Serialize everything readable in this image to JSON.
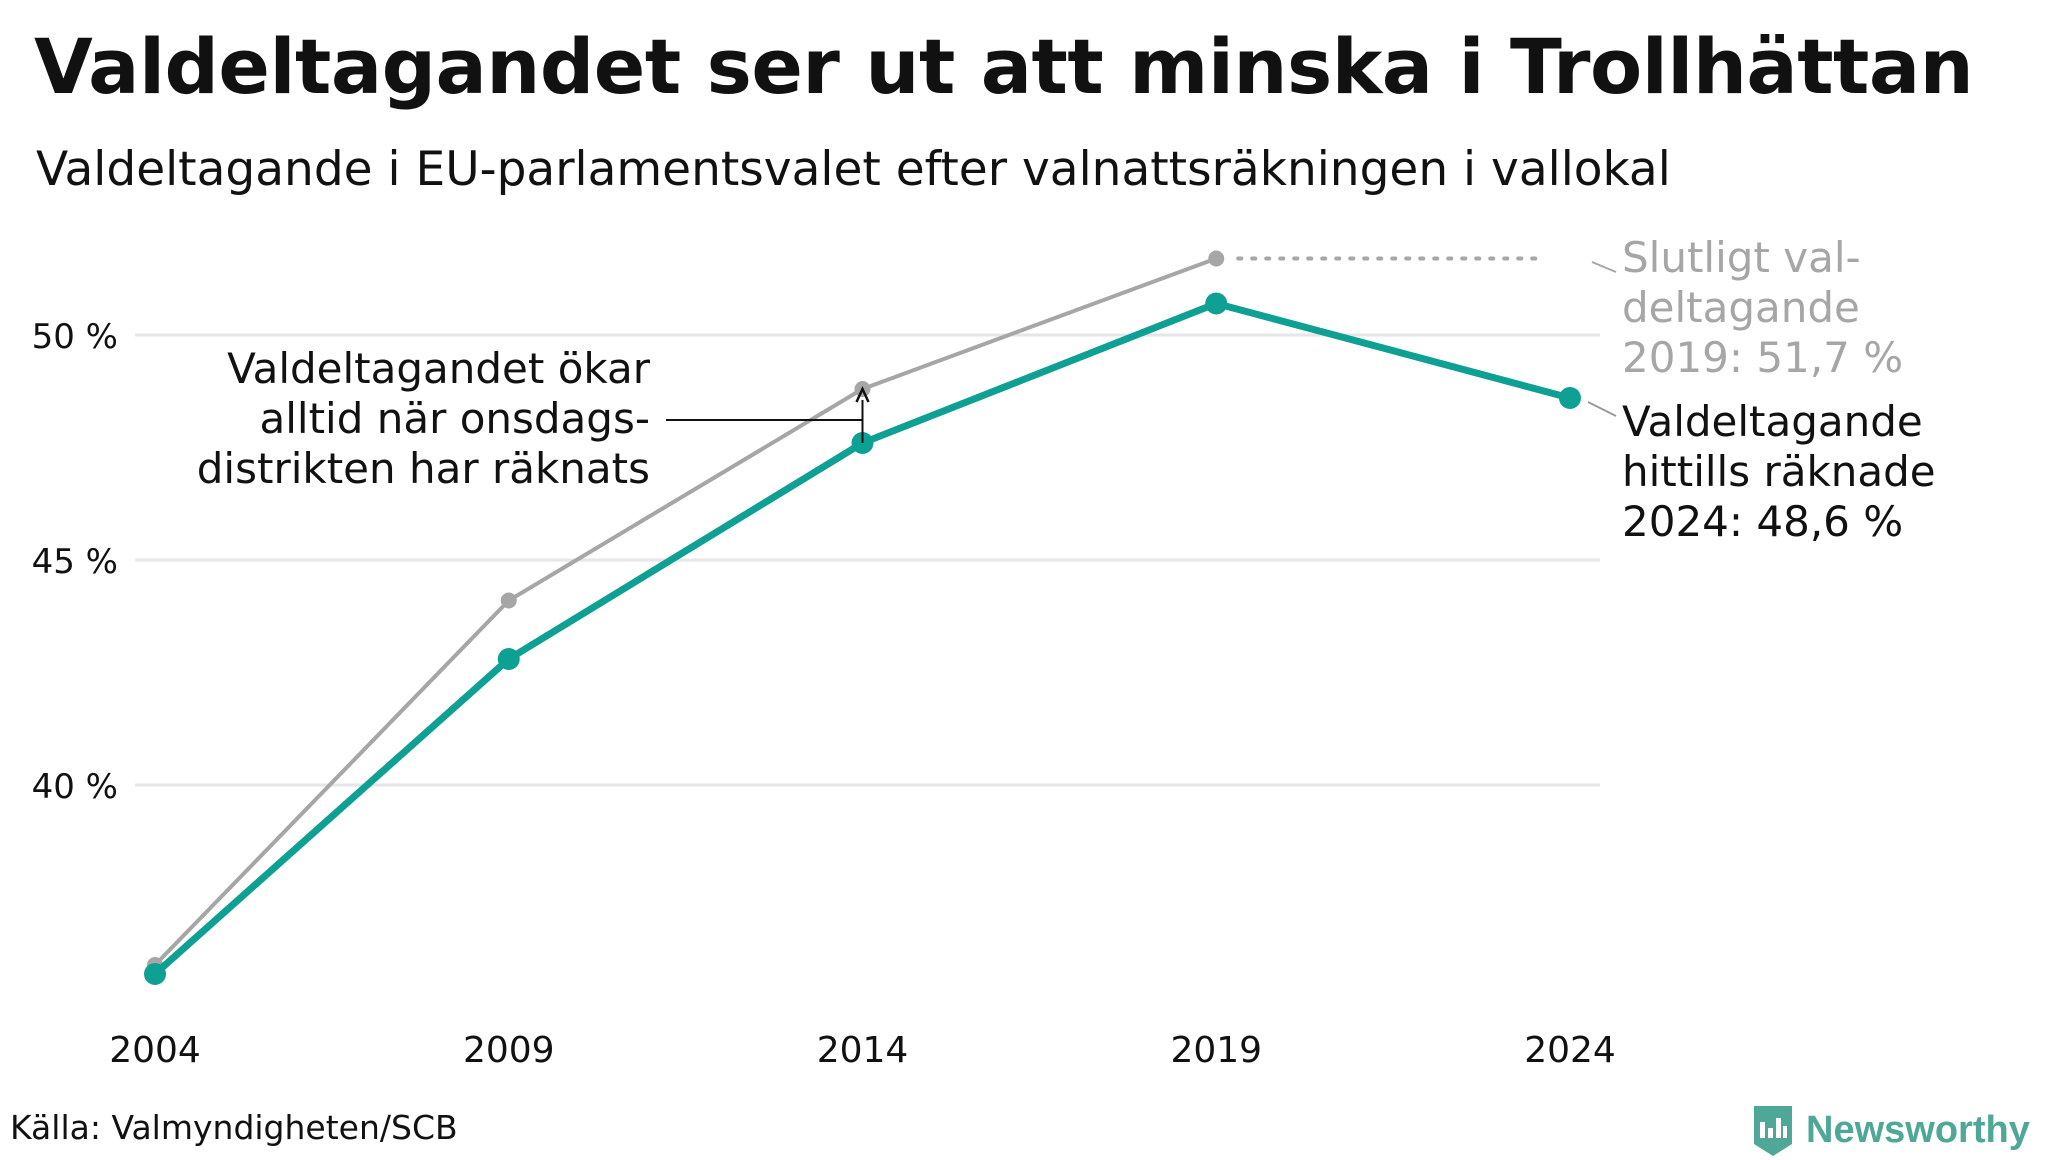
{
  "title": "Valdeltagandet ser ut att minska i Trollhättan",
  "subtitle": "Valdeltagande i EU-parlamentsvalet efter valnattsräkningen i vallokal",
  "source": "Källa: Valmyndigheten/SCB",
  "brand": "Newsworthy",
  "colors": {
    "final": "#a6a6a6",
    "counted": "#0fa094",
    "grid": "#e5e5ea",
    "text": "#111111"
  },
  "chart_data": {
    "type": "line",
    "x": [
      2004,
      2009,
      2014,
      2019,
      2024
    ],
    "x_ticks": [
      "2004",
      "2009",
      "2014",
      "2019",
      "2024"
    ],
    "y_ticks": [
      {
        "value": 40,
        "label": "40 %"
      },
      {
        "value": 45,
        "label": "45 %"
      },
      {
        "value": 50,
        "label": "50 %"
      }
    ],
    "ylim": [
      35.0,
      53.0
    ],
    "grid": true,
    "series": [
      {
        "key": "final",
        "values": [
          36.0,
          44.1,
          48.8,
          51.7,
          null
        ]
      },
      {
        "key": "counted",
        "values": [
          35.8,
          42.8,
          47.6,
          50.7,
          48.6
        ]
      }
    ],
    "annotations": {
      "final_label": [
        "Slutligt val-",
        "deltagande",
        "2019: 51,7 %"
      ],
      "counted_label": [
        "Valdeltagande",
        "hittills räknade",
        "2024: 48,6 %"
      ],
      "note": [
        "Valdeltagandet ökar",
        "alltid när onsdags-",
        "distrikten har räknats"
      ]
    }
  }
}
